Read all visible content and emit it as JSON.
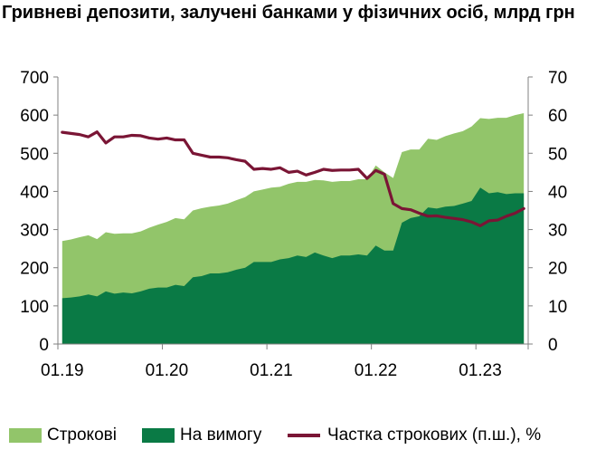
{
  "title": "Гривневі депозити, залучені банками у фізичних осіб, млрд грн",
  "legend": {
    "term": "Строкові",
    "demand": "На вимогу",
    "share": "Частка строкових (п.ш.), %"
  },
  "colors": {
    "term": "#92C56A",
    "demand": "#0A7A45",
    "share": "#7A1535"
  },
  "chart_data": {
    "type": "area",
    "x_tick_labels": [
      "01.19",
      "01.20",
      "01.21",
      "01.22",
      "01.23"
    ],
    "x": [
      "01.19",
      "02.19",
      "03.19",
      "04.19",
      "05.19",
      "06.19",
      "07.19",
      "08.19",
      "09.19",
      "10.19",
      "11.19",
      "12.19",
      "01.20",
      "02.20",
      "03.20",
      "04.20",
      "05.20",
      "06.20",
      "07.20",
      "08.20",
      "09.20",
      "10.20",
      "11.20",
      "12.20",
      "01.21",
      "02.21",
      "03.21",
      "04.21",
      "05.21",
      "06.21",
      "07.21",
      "08.21",
      "09.21",
      "10.21",
      "11.21",
      "12.21",
      "01.22",
      "02.22",
      "03.22",
      "04.22",
      "05.22",
      "06.22",
      "07.22",
      "08.22",
      "09.22",
      "10.22",
      "11.22",
      "12.22",
      "01.23",
      "02.23",
      "03.23",
      "04.23",
      "05.23",
      "06.23"
    ],
    "y_left_ticks": [
      0,
      100,
      200,
      300,
      400,
      500,
      600,
      700
    ],
    "y_right_ticks": [
      0,
      10,
      20,
      30,
      40,
      50,
      60,
      70
    ],
    "ylim_left": [
      0,
      700
    ],
    "ylim_right": [
      0,
      70
    ],
    "series": [
      {
        "name": "На вимогу",
        "axis": "left",
        "values": [
          120,
          122,
          125,
          130,
          125,
          138,
          132,
          135,
          133,
          138,
          145,
          148,
          148,
          155,
          152,
          175,
          178,
          185,
          185,
          188,
          195,
          200,
          215,
          215,
          215,
          222,
          225,
          232,
          228,
          240,
          232,
          225,
          232,
          232,
          235,
          232,
          258,
          245,
          245,
          318,
          330,
          335,
          358,
          355,
          360,
          362,
          368,
          375,
          410,
          395,
          398,
          393,
          395,
          395
        ]
      },
      {
        "name": "Строкові",
        "axis": "left",
        "values": [
          150,
          152,
          155,
          155,
          150,
          155,
          157,
          155,
          157,
          157,
          160,
          165,
          172,
          175,
          175,
          175,
          178,
          175,
          178,
          180,
          182,
          185,
          185,
          190,
          195,
          190,
          195,
          193,
          197,
          190,
          197,
          200,
          195,
          195,
          197,
          200,
          210,
          205,
          190,
          185,
          180,
          175,
          180,
          180,
          185,
          190,
          190,
          195,
          182,
          195,
          195,
          200,
          205,
          210
        ]
      },
      {
        "name": "Частка строкових (п.ш.), %",
        "axis": "right",
        "values": [
          55.5,
          55.2,
          54.9,
          54.3,
          55.6,
          52.7,
          54.3,
          54.3,
          54.7,
          54.6,
          54.0,
          53.7,
          54.0,
          53.5,
          53.5,
          50.0,
          49.5,
          49.0,
          49.0,
          48.8,
          48.3,
          47.9,
          45.8,
          46.0,
          45.8,
          46.2,
          45.0,
          45.3,
          44.3,
          45.0,
          45.8,
          45.5,
          45.6,
          45.6,
          45.8,
          43.4,
          45.5,
          44.5,
          36.8,
          35.5,
          35.2,
          34.3,
          33.5,
          33.6,
          33.2,
          32.9,
          32.6,
          32.0,
          31.0,
          32.3,
          32.5,
          33.5,
          34.3,
          35.5
        ]
      }
    ],
    "legend_position": "bottom",
    "grid": false
  }
}
